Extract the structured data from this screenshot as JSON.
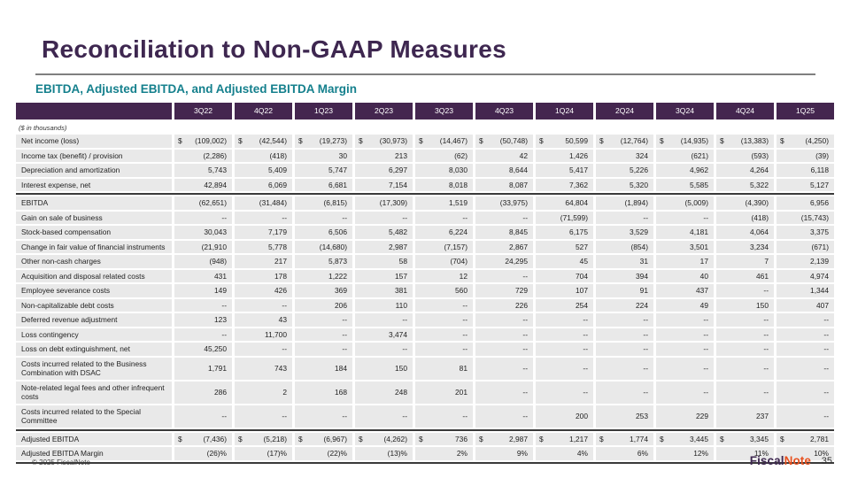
{
  "title": "Reconciliation to Non-GAAP Measures",
  "subtitle": "EBITDA, Adjusted EBITDA, and Adjusted EBITDA Margin",
  "colors": {
    "header_purple": "#44264f",
    "title_purple": "#3e2750",
    "subtitle_teal": "#15808d",
    "row_gray": "#e9e9e9",
    "logo_orange": "#e8501e",
    "divider_dark": "#3a3a3a"
  },
  "table": {
    "unit_note": "($ in thousands)",
    "columns": [
      "3Q22",
      "4Q22",
      "1Q23",
      "2Q23",
      "3Q23",
      "4Q23",
      "1Q24",
      "2Q24",
      "3Q24",
      "4Q24",
      "1Q25"
    ],
    "rows": [
      {
        "label": "Net income (loss)",
        "dollar": true,
        "style": "normal",
        "values": [
          "(109,002)",
          "(42,544)",
          "(19,273)",
          "(30,973)",
          "(14,467)",
          "(50,748)",
          "50,599",
          "(12,764)",
          "(14,935)",
          "(13,383)",
          "(4,250)"
        ]
      },
      {
        "label": "Income tax (benefit) / provision",
        "dollar": false,
        "style": "normal",
        "values": [
          "(2,286)",
          "(418)",
          "30",
          "213",
          "(62)",
          "42",
          "1,426",
          "324",
          "(621)",
          "(593)",
          "(39)"
        ]
      },
      {
        "label": "Depreciation and amortization",
        "dollar": false,
        "style": "normal",
        "values": [
          "5,743",
          "5,409",
          "5,747",
          "6,297",
          "8,030",
          "8,644",
          "5,417",
          "5,226",
          "4,962",
          "4,264",
          "6,118"
        ]
      },
      {
        "label": "Interest expense, net",
        "dollar": false,
        "style": "normal",
        "values": [
          "42,894",
          "6,069",
          "6,681",
          "7,154",
          "8,018",
          "8,087",
          "7,362",
          "5,320",
          "5,585",
          "5,322",
          "5,127"
        ]
      },
      {
        "label": "EBITDA",
        "dollar": false,
        "style": "subtotal",
        "values": [
          "(62,651)",
          "(31,484)",
          "(6,815)",
          "(17,309)",
          "1,519",
          "(33,975)",
          "64,804",
          "(1,894)",
          "(5,009)",
          "(4,390)",
          "6,956"
        ]
      },
      {
        "label": "Gain on sale of business",
        "dollar": false,
        "style": "normal",
        "values": [
          "--",
          "--",
          "--",
          "--",
          "--",
          "--",
          "(71,599)",
          "--",
          "--",
          "(418)",
          "(15,743)"
        ]
      },
      {
        "label": "Stock-based compensation",
        "dollar": false,
        "style": "normal",
        "values": [
          "30,043",
          "7,179",
          "6,506",
          "5,482",
          "6,224",
          "8,845",
          "6,175",
          "3,529",
          "4,181",
          "4,064",
          "3,375"
        ]
      },
      {
        "label": "Change in fair value of financial instruments",
        "dollar": false,
        "style": "normal",
        "values": [
          "(21,910",
          "5,778",
          "(14,680)",
          "2,987",
          "(7,157)",
          "2,867",
          "527",
          "(854)",
          "3,501",
          "3,234",
          "(671)"
        ]
      },
      {
        "label": "Other non-cash charges",
        "dollar": false,
        "style": "normal",
        "values": [
          "(948)",
          "217",
          "5,873",
          "58",
          "(704)",
          "24,295",
          "45",
          "31",
          "17",
          "7",
          "2,139"
        ]
      },
      {
        "label": "Acquisition and disposal related costs",
        "dollar": false,
        "style": "normal",
        "values": [
          "431",
          "178",
          "1,222",
          "157",
          "12",
          "--",
          "704",
          "394",
          "40",
          "461",
          "4,974"
        ]
      },
      {
        "label": "Employee severance costs",
        "dollar": false,
        "style": "normal",
        "values": [
          "149",
          "426",
          "369",
          "381",
          "560",
          "729",
          "107",
          "91",
          "437",
          "--",
          "1,344"
        ]
      },
      {
        "label": "Non-capitalizable debt costs",
        "dollar": false,
        "style": "normal",
        "values": [
          "--",
          "--",
          "206",
          "110",
          "--",
          "226",
          "254",
          "224",
          "49",
          "150",
          "407"
        ]
      },
      {
        "label": "Deferred revenue adjustment",
        "dollar": false,
        "style": "normal",
        "values": [
          "123",
          "43",
          "--",
          "--",
          "--",
          "--",
          "--",
          "--",
          "--",
          "--",
          "--"
        ]
      },
      {
        "label": "Loss contingency",
        "dollar": false,
        "style": "normal",
        "values": [
          "--",
          "11,700",
          "--",
          "3,474",
          "--",
          "--",
          "--",
          "--",
          "--",
          "--",
          "--"
        ]
      },
      {
        "label": "Loss on debt extinguishment, net",
        "dollar": false,
        "style": "normal",
        "values": [
          "45,250",
          "--",
          "--",
          "--",
          "--",
          "--",
          "--",
          "--",
          "--",
          "--",
          "--"
        ]
      },
      {
        "label": "Costs incurred related to the Business Combination with DSAC",
        "dollar": false,
        "style": "normal",
        "values": [
          "1,791",
          "743",
          "184",
          "150",
          "81",
          "--",
          "--",
          "--",
          "--",
          "--",
          "--"
        ]
      },
      {
        "label": "Note-related legal fees and other infrequent costs",
        "dollar": false,
        "style": "normal",
        "values": [
          "286",
          "2",
          "168",
          "248",
          "201",
          "--",
          "--",
          "--",
          "--",
          "--",
          "--"
        ]
      },
      {
        "label": "Costs incurred related to the Special Committee",
        "dollar": false,
        "style": "normal",
        "values": [
          "--",
          "--",
          "--",
          "--",
          "--",
          "--",
          "200",
          "253",
          "229",
          "237",
          "--"
        ]
      },
      {
        "label": "Adjusted EBITDA",
        "dollar": true,
        "style": "total",
        "values": [
          "(7,436)",
          "(5,218)",
          "(6,967)",
          "(4,262)",
          "736",
          "2,987",
          "1,217",
          "1,774",
          "3,445",
          "3,345",
          "2,781"
        ]
      },
      {
        "label": "Adjusted EBITDA Margin",
        "dollar": false,
        "style": "margin",
        "values": [
          "(26)%",
          "(17)%",
          "(22)%",
          "(13)%",
          "2%",
          "9%",
          "4%",
          "6%",
          "12%",
          "11%",
          "10%"
        ]
      }
    ]
  },
  "footer": {
    "copyright": "© 2025 FiscalNote",
    "logo_fiscal": "Fiscal",
    "logo_note": "Note",
    "page_number": "35"
  }
}
